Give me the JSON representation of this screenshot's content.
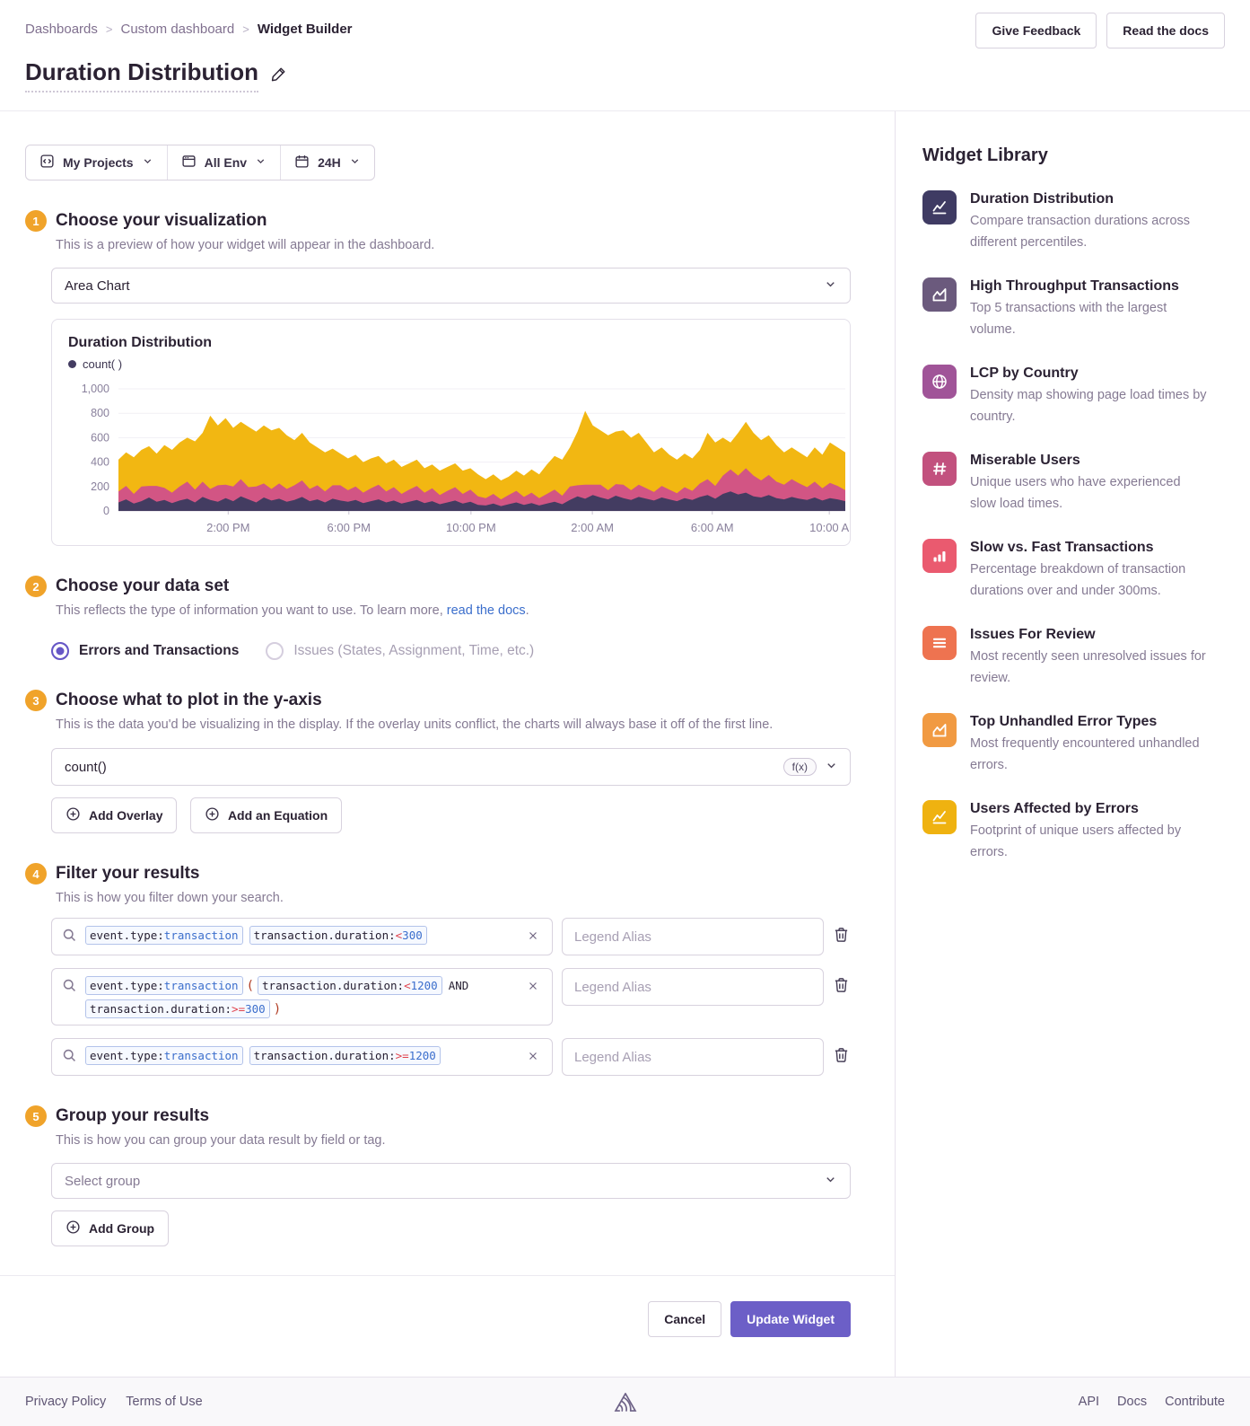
{
  "breadcrumb": {
    "items": [
      "Dashboards",
      "Custom dashboard",
      "Widget Builder"
    ]
  },
  "header": {
    "give_feedback": "Give Feedback",
    "read_the_docs": "Read the docs",
    "title": "Duration Distribution"
  },
  "toolbar": {
    "projects_label": "My Projects",
    "env_label": "All Env",
    "time_label": "24H"
  },
  "sections": {
    "visualization": {
      "num": "1",
      "title": "Choose your visualization",
      "subtitle": "This is a preview of how your widget will appear in the dashboard.",
      "select_value": "Area Chart"
    },
    "dataset": {
      "num": "2",
      "title": "Choose your data set",
      "subtitle_prefix": "This reflects the type of information you want to use. To learn more, ",
      "subtitle_link": "read the docs",
      "subtitle_suffix": ".",
      "options": [
        {
          "label": "Errors and Transactions",
          "selected": true
        },
        {
          "label": "Issues (States, Assignment, Time, etc.)",
          "selected": false
        }
      ]
    },
    "yaxis": {
      "num": "3",
      "title": "Choose what to plot in the y-axis",
      "subtitle": "This is the data you'd be visualizing in the display. If the overlay units conflict, the charts will always base it off of the first line.",
      "field_value": "count()",
      "fx_badge": "f(x)",
      "add_overlay": "Add Overlay",
      "add_equation": "Add an Equation"
    },
    "filter": {
      "num": "4",
      "title": "Filter your results",
      "subtitle": "This is how you filter down your search.",
      "legend_placeholder": "Legend Alias",
      "rows": [
        {
          "lines": [
            [
              {
                "type": "token",
                "parts": [
                  {
                    "text": "event.type:",
                    "style": "key"
                  },
                  {
                    "text": "transaction",
                    "style": "val"
                  }
                ]
              },
              {
                "type": "token",
                "parts": [
                  {
                    "text": "transaction.duration:",
                    "style": "key"
                  },
                  {
                    "text": "<",
                    "style": "op"
                  },
                  {
                    "text": "300",
                    "style": "val"
                  }
                ]
              }
            ]
          ]
        },
        {
          "lines": [
            [
              {
                "type": "token",
                "parts": [
                  {
                    "text": "event.type:",
                    "style": "key"
                  },
                  {
                    "text": "transaction",
                    "style": "val"
                  }
                ]
              },
              {
                "type": "paren",
                "text": "("
              },
              {
                "type": "token",
                "parts": [
                  {
                    "text": "transaction.duration:",
                    "style": "key"
                  },
                  {
                    "text": "<",
                    "style": "op"
                  },
                  {
                    "text": "1200",
                    "style": "val"
                  }
                ]
              },
              {
                "type": "word",
                "text": "AND"
              }
            ],
            [
              {
                "type": "token",
                "parts": [
                  {
                    "text": "transaction.duration:",
                    "style": "key"
                  },
                  {
                    "text": ">=",
                    "style": "op"
                  },
                  {
                    "text": "300",
                    "style": "val"
                  }
                ]
              },
              {
                "type": "paren",
                "text": ")"
              }
            ]
          ]
        },
        {
          "lines": [
            [
              {
                "type": "token",
                "parts": [
                  {
                    "text": "event.type:",
                    "style": "key"
                  },
                  {
                    "text": "transaction",
                    "style": "val"
                  }
                ]
              },
              {
                "type": "token",
                "parts": [
                  {
                    "text": "transaction.duration:",
                    "style": "key"
                  },
                  {
                    "text": ">=",
                    "style": "op"
                  },
                  {
                    "text": "1200",
                    "style": "val"
                  }
                ]
              }
            ]
          ]
        }
      ]
    },
    "group": {
      "num": "5",
      "title": "Group your results",
      "subtitle": "This is how you can group your data result by field or tag.",
      "select_placeholder": "Select group",
      "add_group": "Add Group"
    }
  },
  "actions": {
    "cancel": "Cancel",
    "submit": "Update Widget"
  },
  "library": {
    "title": "Widget Library",
    "items": [
      {
        "name": "Duration Distribution",
        "desc": "Compare transaction durations across different percentiles.",
        "color": "#3f3b63",
        "icon": "line-chart-icon",
        "dotted": false
      },
      {
        "name": "High Throughput Transactions",
        "desc": "Top 5 transactions with the largest volume.",
        "color": "#6b5a7d",
        "icon": "area-chart-icon",
        "dotted": true
      },
      {
        "name": "LCP by Country",
        "desc": "Density map showing page load times by country.",
        "color": "#a05498",
        "icon": "globe-icon",
        "dotted": false
      },
      {
        "name": "Miserable Users",
        "desc": "Unique users who have experienced slow load times.",
        "color": "#c2517e",
        "icon": "hash-icon",
        "dotted": false
      },
      {
        "name": "Slow vs. Fast Transactions",
        "desc": "Percentage breakdown of transaction durations over and under 300ms.",
        "color": "#ea5a6f",
        "icon": "bar-chart-icon",
        "dotted": false
      },
      {
        "name": "Issues For Review",
        "desc": "Most recently seen unresolved issues for review.",
        "color": "#ee7350",
        "icon": "list-icon",
        "dotted": false
      },
      {
        "name": "Top Unhandled Error Types",
        "desc": "Most frequently encountered unhandled errors.",
        "color": "#f19a42",
        "icon": "area-chart-icon",
        "dotted": false
      },
      {
        "name": "Users Affected by Errors",
        "desc": "Footprint of unique users affected by errors.",
        "color": "#efb210",
        "icon": "line-chart-icon",
        "dotted": false
      }
    ]
  },
  "footer": {
    "left": [
      "Privacy Policy",
      "Terms of Use"
    ],
    "right": [
      "API",
      "Docs",
      "Contribute"
    ]
  },
  "chart_data": {
    "type": "area",
    "stacked": true,
    "title": "Duration Distribution",
    "legend_label": "count( )",
    "ylim": [
      0,
      1000
    ],
    "y_ticks": [
      0,
      200,
      400,
      600,
      800,
      1000
    ],
    "y_tick_labels": [
      "0",
      "200",
      "400",
      "600",
      "800",
      "1,000"
    ],
    "x_ticks": [
      {
        "label": "2:00 PM",
        "f": 0.151
      },
      {
        "label": "6:00 PM",
        "f": 0.317
      },
      {
        "label": "10:00 PM",
        "f": 0.485
      },
      {
        "label": "2:00 AM",
        "f": 0.652
      },
      {
        "label": "6:00 AM",
        "f": 0.817
      },
      {
        "label": "10:00 A",
        "f": 0.978
      }
    ],
    "grid": true,
    "legend_position": "top-left",
    "series": [
      {
        "name": "event.type:transaction transaction.duration:<300",
        "color": "#433c61",
        "values": [
          70,
          95,
          60,
          80,
          110,
          75,
          90,
          65,
          85,
          100,
          70,
          115,
          90,
          75,
          105,
          80,
          120,
          95,
          70,
          110,
          85,
          100,
          75,
          90,
          115,
          80,
          95,
          70,
          100,
          85,
          75,
          90,
          65,
          80,
          95,
          70,
          85,
          60,
          75,
          90,
          65,
          80,
          55,
          70,
          85,
          60,
          75,
          50,
          45,
          60,
          40,
          55,
          70,
          50,
          65,
          45,
          60,
          75,
          55,
          90,
          120,
          100,
          130,
          110,
          95,
          125,
          105,
          90,
          115,
          100,
          85,
          110,
          95,
          80,
          105,
          90,
          115,
          130,
          100,
          140,
          160,
          135,
          150,
          120,
          110,
          130,
          105,
          95,
          115,
          100,
          90,
          110,
          85,
          105,
          95,
          80
        ]
      },
      {
        "name": "event.type:transaction (transaction.duration:<1200 AND transaction.duration:>=300)",
        "color": "#d25584",
        "values": [
          90,
          110,
          80,
          120,
          95,
          130,
          100,
          85,
          115,
          140,
          105,
          125,
          90,
          135,
          110,
          120,
          140,
          100,
          130,
          115,
          95,
          125,
          105,
          120,
          135,
          100,
          115,
          90,
          110,
          125,
          95,
          110,
          85,
          105,
          120,
          90,
          110,
          80,
          100,
          115,
          85,
          105,
          75,
          95,
          110,
          80,
          100,
          70,
          60,
          80,
          55,
          75,
          95,
          65,
          85,
          60,
          80,
          100,
          70,
          110,
          90,
          115,
          85,
          105,
          75,
          95,
          110,
          80,
          100,
          85,
          70,
          95,
          80,
          65,
          90,
          75,
          110,
          130,
          105,
          150,
          180,
          155,
          200,
          170,
          140,
          165,
          135,
          120,
          145,
          125,
          105,
          130,
          100,
          125,
          110,
          90
        ]
      },
      {
        "name": "event.type:transaction transaction.duration:>=1200",
        "color": "#f2b712",
        "values": [
          260,
          275,
          300,
          300,
          325,
          265,
          350,
          350,
          360,
          360,
          395,
          400,
          600,
          490,
          545,
          480,
          470,
          495,
          450,
          475,
          480,
          455,
          440,
          370,
          390,
          380,
          310,
          320,
          300,
          260,
          260,
          260,
          250,
          245,
          235,
          230,
          225,
          220,
          215,
          215,
          200,
          195,
          200,
          195,
          195,
          190,
          175,
          180,
          155,
          160,
          155,
          150,
          165,
          175,
          190,
          195,
          240,
          275,
          295,
          320,
          440,
          605,
          485,
          445,
          450,
          430,
          445,
          430,
          425,
          375,
          325,
          315,
          285,
          275,
          275,
          265,
          275,
          380,
          355,
          310,
          220,
          350,
          380,
          350,
          330,
          325,
          300,
          265,
          260,
          255,
          245,
          280,
          275,
          330,
          315,
          310
        ]
      }
    ]
  }
}
